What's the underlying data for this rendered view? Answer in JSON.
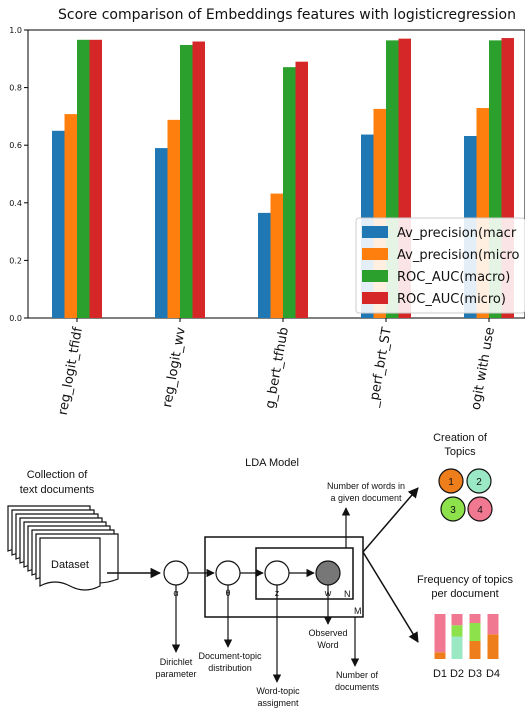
{
  "chart_data": {
    "type": "bar",
    "title": "Score comparison of Embeddings features with logisticregression",
    "categories": [
      "reg_logit_tfidf",
      "reg_logit_wv",
      "g_bert_tfhub",
      "_perf_brt_ST",
      "ogit with use"
    ],
    "series": [
      {
        "name": "Av_precision(macr",
        "color": "#1f77b4",
        "values": [
          0.65,
          0.59,
          0.365,
          0.637,
          0.632
        ]
      },
      {
        "name": "Av_precision(micro",
        "color": "#ff7f0e",
        "values": [
          0.708,
          0.688,
          0.432,
          0.726,
          0.729
        ]
      },
      {
        "name": "ROC_AUC(macro)",
        "color": "#2ca02c",
        "values": [
          0.966,
          0.948,
          0.871,
          0.964,
          0.964
        ]
      },
      {
        "name": "ROC_AUC(micro)",
        "color": "#d62728",
        "values": [
          0.966,
          0.96,
          0.89,
          0.97,
          0.972
        ]
      }
    ],
    "yticks": [
      "0.0",
      "0.2",
      "0.4",
      "0.6",
      "0.8",
      "1.0"
    ],
    "ylim": [
      0,
      1.0
    ],
    "legend_placement": "lower-right",
    "grid": false
  },
  "diagram": {
    "collection_label": [
      "Collection of",
      "text documents"
    ],
    "dataset_label": "Dataset",
    "lda_title": "LDA Model",
    "alpha": "α",
    "theta": "θ",
    "z": "z",
    "w": "w",
    "plate_n": "N",
    "plate_m": "M",
    "words_label": [
      "Number of words in",
      "a given document"
    ],
    "dirichlet_label": [
      "Dirichlet",
      "parameter"
    ],
    "doc_topic_label": [
      "Document-topic",
      "distribution"
    ],
    "word_topic_label": [
      "Word-topic",
      "assigment"
    ],
    "observed_label": [
      "Observed",
      "Word"
    ],
    "num_docs_label": [
      "Number of",
      "documents"
    ],
    "creation_label": [
      "Creation of",
      "Topics"
    ],
    "topics": [
      {
        "label": "1",
        "color": "#ee7d1c"
      },
      {
        "label": "2",
        "color": "#9be8c4"
      },
      {
        "label": "3",
        "color": "#8de14a"
      },
      {
        "label": "4",
        "color": "#f07890"
      }
    ],
    "frequency_label": [
      "Frequency of topics",
      "per document"
    ],
    "docs": [
      "D1",
      "D2",
      "D3",
      "D4"
    ],
    "doc_topic_stack": [
      [
        0.15,
        0,
        0,
        0.85
      ],
      [
        0,
        0.5,
        0.25,
        0.25
      ],
      [
        0.4,
        0,
        0.4,
        0.2
      ],
      [
        0.55,
        0,
        0,
        0.45
      ]
    ]
  }
}
